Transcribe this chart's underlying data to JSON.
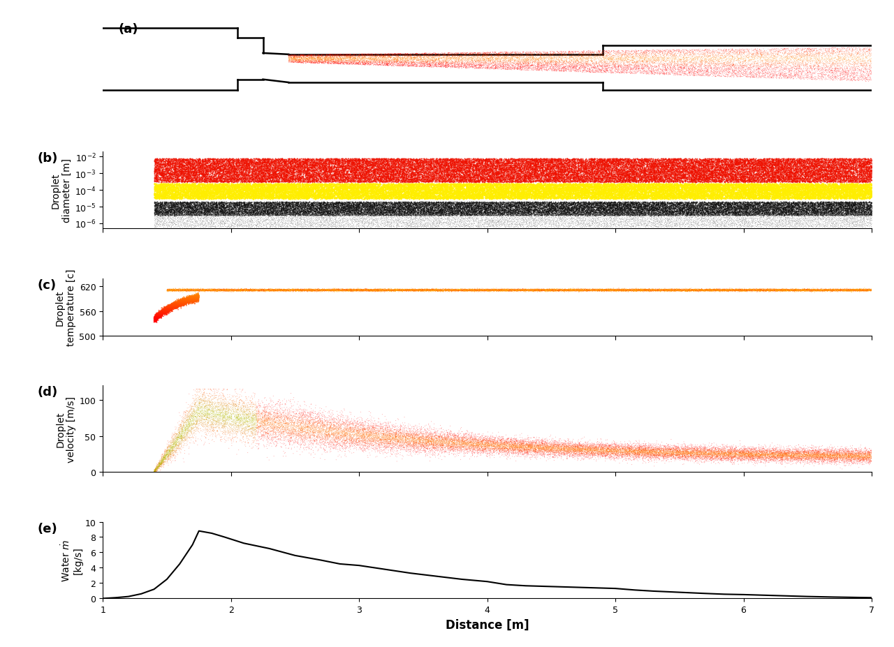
{
  "xlabel": "Distance [m]",
  "x_min": 1.0,
  "x_max": 7.0,
  "panels": [
    "(a)",
    "(b)",
    "(c)",
    "(d)",
    "(e)"
  ],
  "panel_b": {
    "ylabel": "Droplet\ndiameter [m]"
  },
  "panel_c": {
    "ylabel": "Droplet\ntemperature [c]",
    "ylim": [
      500,
      640
    ],
    "yticks": [
      500,
      560,
      620
    ]
  },
  "panel_d": {
    "ylabel": "Droplet\nvelocity [m/s]",
    "ylim": [
      0,
      120
    ],
    "yticks": [
      0,
      50,
      100
    ]
  },
  "panel_e": {
    "ylabel": "Water $\\dot{m}$\n[kg/s]",
    "ylim": [
      0,
      10
    ],
    "yticks": [
      0,
      2,
      4,
      6,
      8,
      10
    ],
    "water_x": [
      1.0,
      1.05,
      1.1,
      1.2,
      1.3,
      1.4,
      1.5,
      1.6,
      1.7,
      1.75,
      1.85,
      1.95,
      2.1,
      2.3,
      2.5,
      2.7,
      2.85,
      3.0,
      3.2,
      3.4,
      3.6,
      3.8,
      4.0,
      4.15,
      4.3,
      4.4,
      4.5,
      4.6,
      4.8,
      5.0,
      5.15,
      5.3,
      5.5,
      5.7,
      5.85,
      6.0,
      6.2,
      6.5,
      6.7,
      7.0
    ],
    "water_y": [
      0.0,
      0.05,
      0.1,
      0.25,
      0.6,
      1.2,
      2.5,
      4.5,
      7.0,
      8.8,
      8.5,
      8.0,
      7.2,
      6.5,
      5.6,
      5.0,
      4.5,
      4.3,
      3.8,
      3.3,
      2.9,
      2.5,
      2.2,
      1.8,
      1.65,
      1.6,
      1.55,
      1.5,
      1.4,
      1.3,
      1.1,
      0.95,
      0.8,
      0.65,
      0.55,
      0.5,
      0.4,
      0.25,
      0.18,
      0.1
    ]
  },
  "nozzle_line_color": "#000000",
  "background_color": "#FFFFFF",
  "label_fontsize": 10,
  "tick_fontsize": 9,
  "panel_label_fontsize": 13
}
